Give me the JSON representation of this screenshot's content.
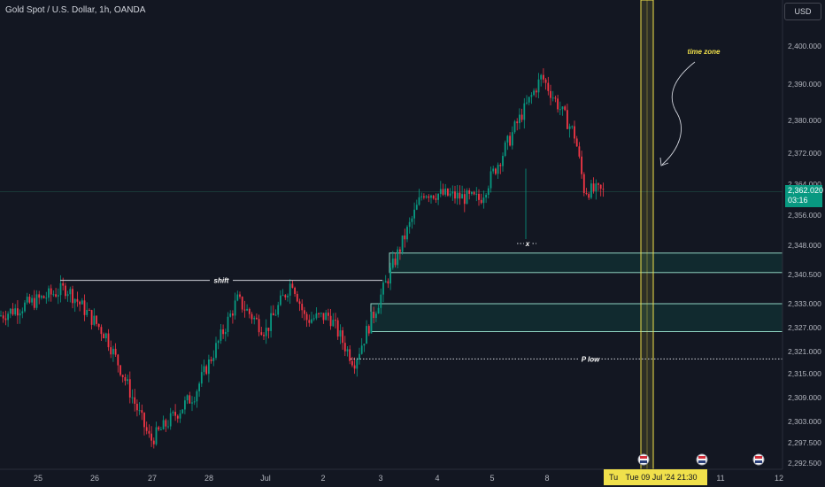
{
  "header": {
    "title": "Gold Spot / U.S. Dollar, 1h, OANDA",
    "currency": "USD"
  },
  "price_badge": {
    "price": "2,362.020",
    "countdown": "03:16"
  },
  "crosshair_date": {
    "prefix": "Tu",
    "label": "Tue 09 Jul '24   21:30"
  },
  "annotations": {
    "time_zone": "time zone",
    "shift": "shift",
    "x_mark": "x",
    "p_low": "P low"
  },
  "colors": {
    "up": "#089981",
    "down": "#f23645",
    "zone": "#8fd3c1",
    "highlight": "#f0e04b",
    "background": "#131722"
  },
  "chart_data": {
    "type": "candlestick",
    "symbol": "XAUUSD",
    "timeframe": "1h",
    "y_ticks": [
      "2,292.500",
      "2,297.500",
      "2,303.000",
      "2,309.000",
      "2,315.000",
      "2,321.000",
      "2,327.000",
      "2,333.000",
      "2,340.500",
      "2,348.000",
      "2,356.000",
      "2,364.000",
      "2,372.000",
      "2,380.000",
      "2,390.000",
      "2,400.000"
    ],
    "x_ticks": [
      "25",
      "26",
      "27",
      "28",
      "Jul",
      "2",
      "3",
      "4",
      "5",
      "8",
      "11",
      "12"
    ],
    "key_points": [
      {
        "time": "25 Jun",
        "price": 2332
      },
      {
        "time": "25 Jun",
        "price": 2338
      },
      {
        "time": "26 Jun",
        "price": 2318
      },
      {
        "time": "27 Jun",
        "price": 2298
      },
      {
        "time": "28 Jun",
        "price": 2334
      },
      {
        "time": "Jul",
        "price": 2328
      },
      {
        "time": "2 Jul",
        "price": 2330
      },
      {
        "time": "3 Jul",
        "price": 2327
      },
      {
        "time": "4 Jul",
        "price": 2360
      },
      {
        "time": "5 Jul",
        "price": 2362
      },
      {
        "time": "8 Jul",
        "price": 2392
      },
      {
        "time": "8 Jul",
        "price": 2372
      },
      {
        "time": "9 Jul",
        "price": 2362.02
      }
    ],
    "lines": [
      {
        "label": "shift",
        "price": 2339
      },
      {
        "label": "P low",
        "price": 2319
      }
    ],
    "zones": [
      {
        "from": 2341,
        "to": 2346
      },
      {
        "from": 2326,
        "to": 2333
      }
    ],
    "current_price": 2362.02
  }
}
